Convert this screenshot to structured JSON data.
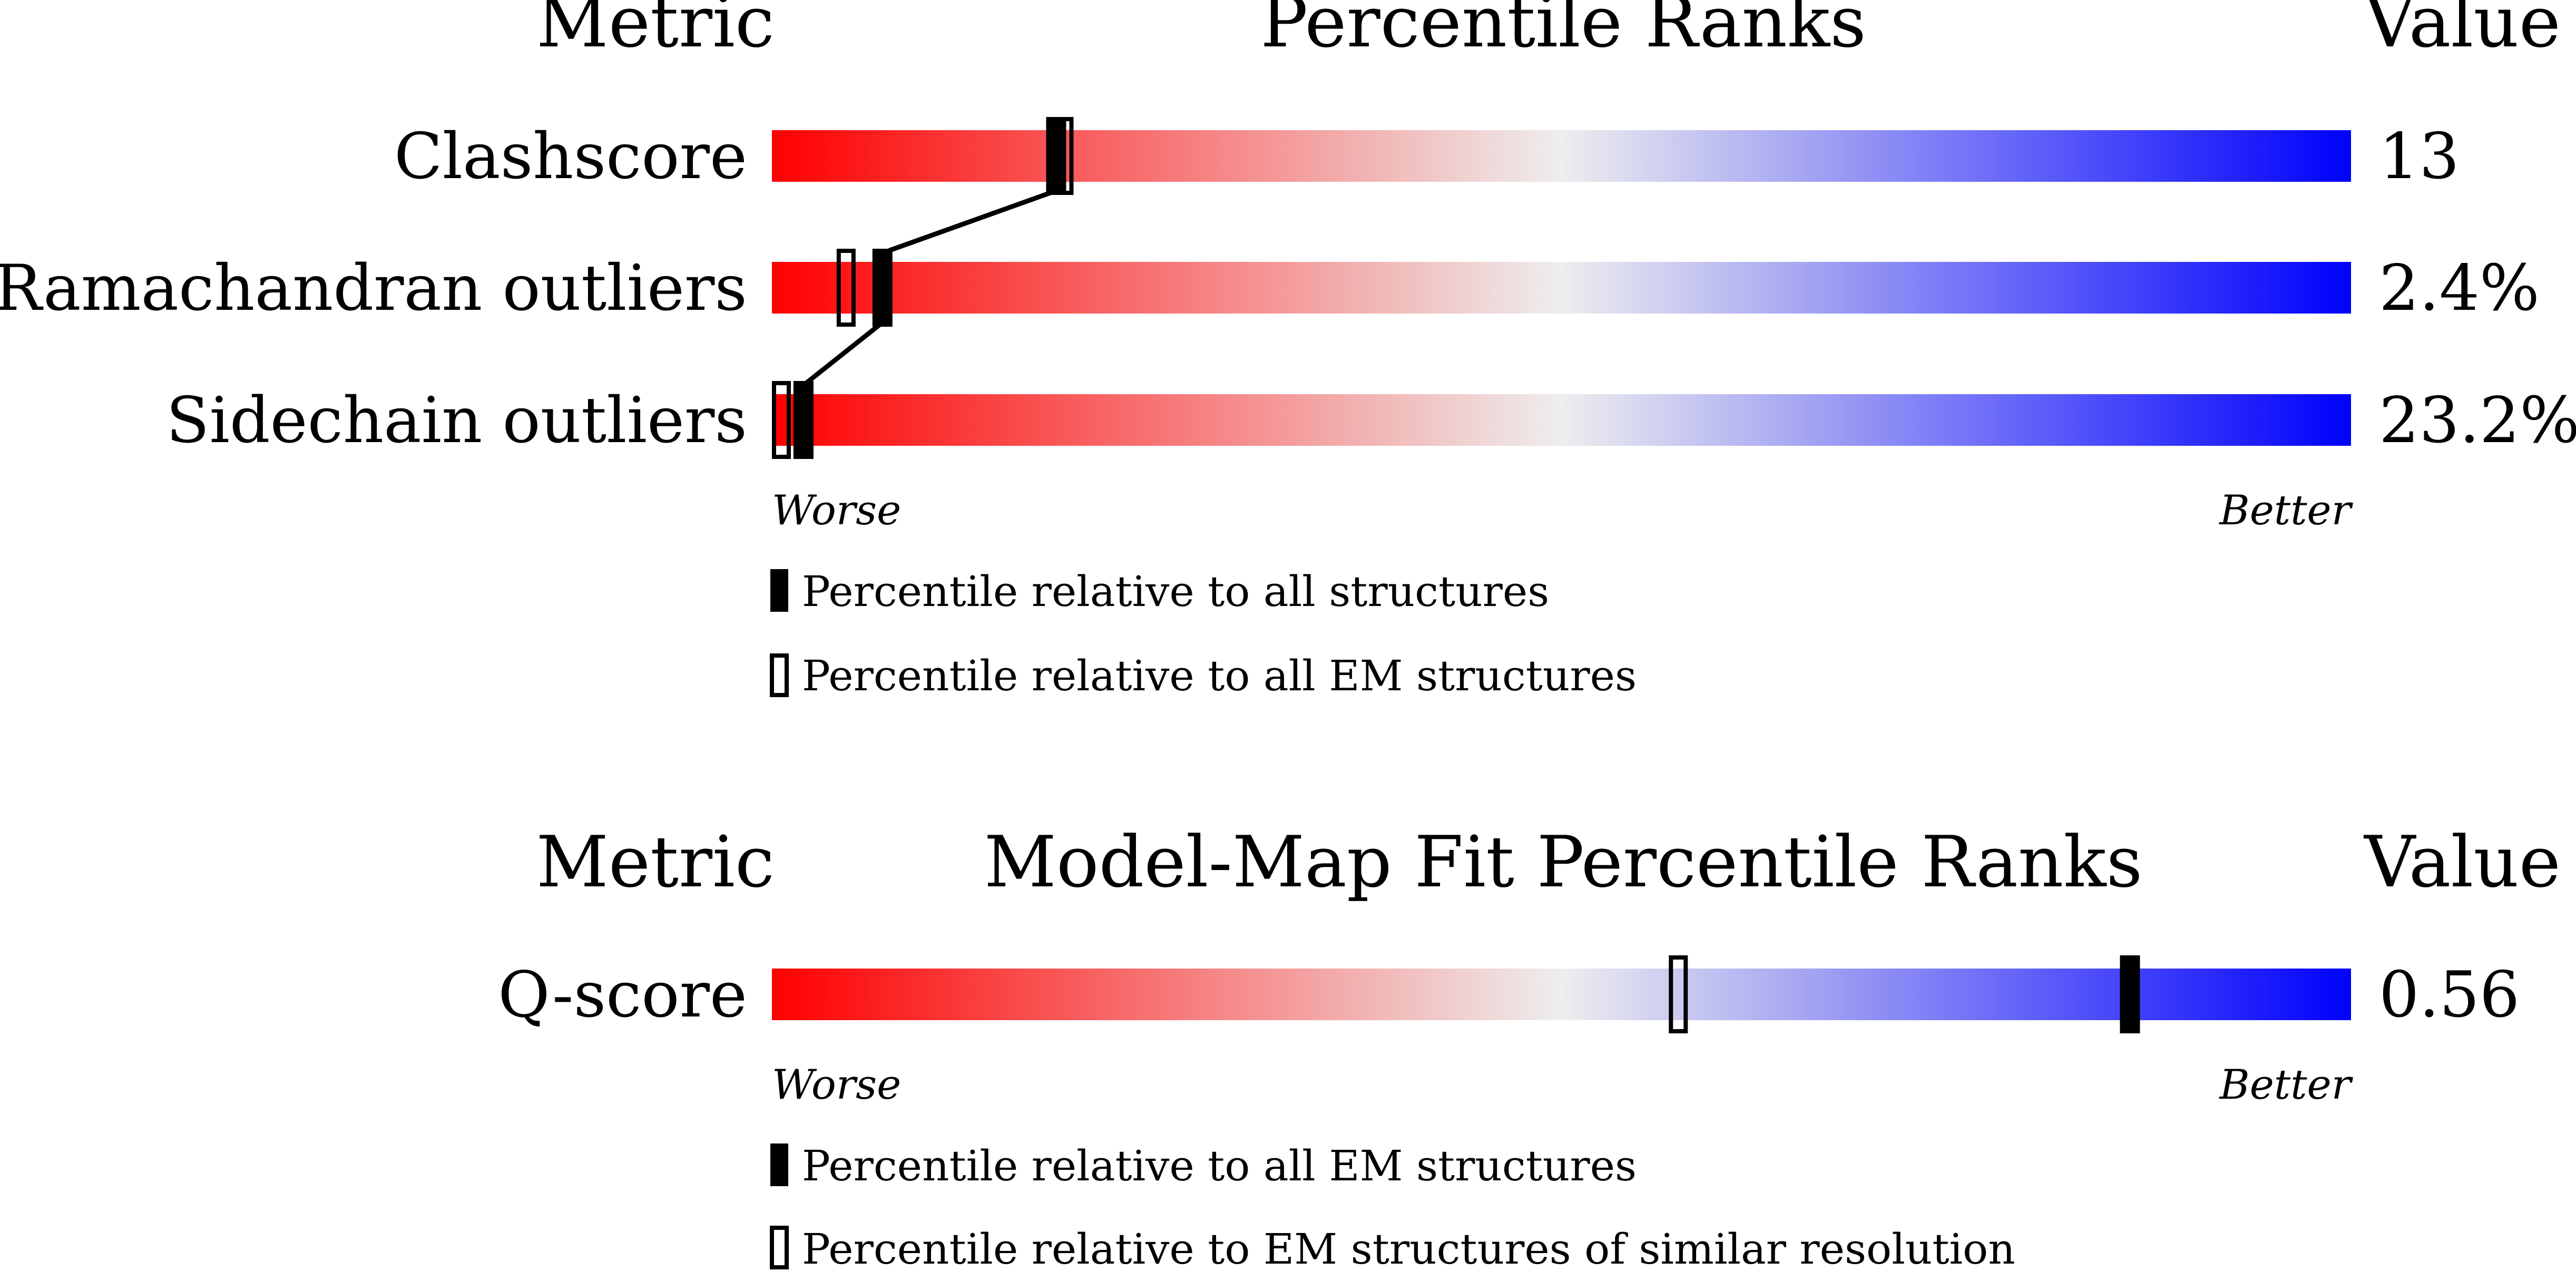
{
  "colors": {
    "worse": "#ff0000",
    "mid": "#eeeeee",
    "better": "#0000ff",
    "marker": "#000000",
    "connector": "#000000"
  },
  "top": {
    "header_metric": "Metric",
    "header_title": "Percentile Ranks",
    "header_value": "Value",
    "worse": "Worse",
    "better": "Better",
    "legend_filled": "Percentile relative to all structures",
    "legend_open": "Percentile relative to all EM structures"
  },
  "bottom": {
    "header_metric": "Metric",
    "header_title": "Model-Map Fit Percentile Ranks",
    "header_value": "Value",
    "worse": "Worse",
    "better": "Better",
    "legend_filled": "Percentile relative to all EM structures",
    "legend_open": "Percentile relative to EM structures of similar resolution"
  },
  "chart_data": [
    {
      "type": "bar",
      "title": "Percentile Ranks",
      "xlim": [
        0,
        100
      ],
      "x_direction": "Worse to Better",
      "metrics": [
        {
          "name": "Clashscore",
          "value": "13",
          "percentile_filled": 18,
          "percentile_open": 18.5
        },
        {
          "name": "Ramachandran outliers",
          "value": "2.4%",
          "percentile_filled": 7,
          "percentile_open": 4.7
        },
        {
          "name": "Sidechain outliers",
          "value": "23.2%",
          "percentile_filled": 2,
          "percentile_open": 0.6
        }
      ],
      "legend": [
        "Percentile relative to all structures",
        "Percentile relative to all EM structures"
      ]
    },
    {
      "type": "bar",
      "title": "Model-Map Fit Percentile Ranks",
      "xlim": [
        0,
        100
      ],
      "x_direction": "Worse to Better",
      "metrics": [
        {
          "name": "Q-score",
          "value": "0.56",
          "percentile_filled": 86,
          "percentile_open": 57.4
        }
      ],
      "legend": [
        "Percentile relative to all EM structures",
        "Percentile relative to EM structures of similar resolution"
      ]
    }
  ]
}
